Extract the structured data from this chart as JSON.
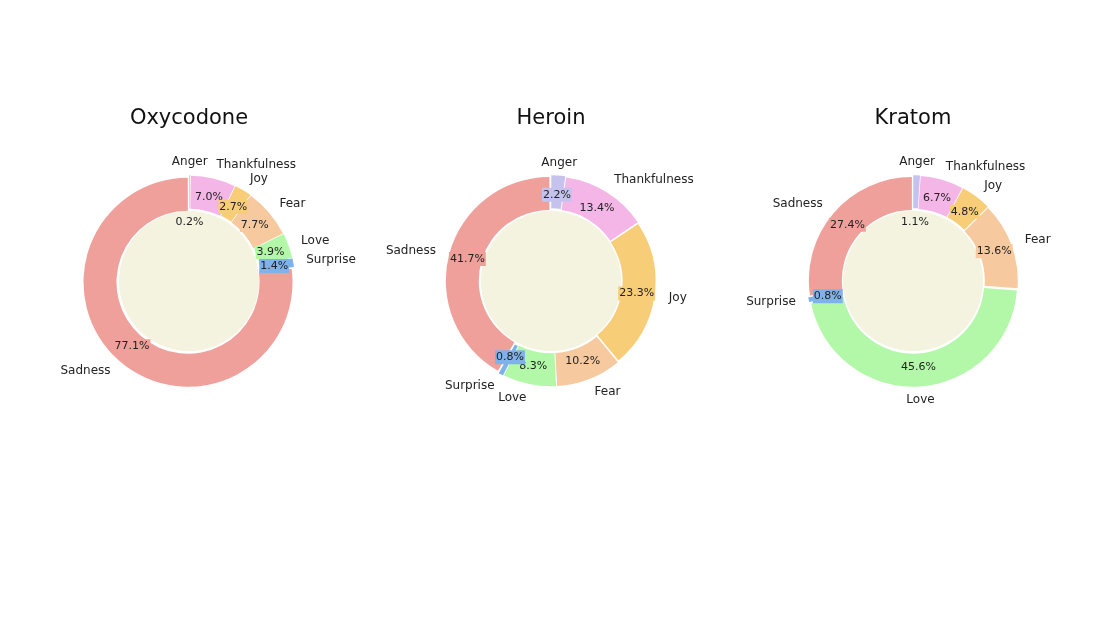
{
  "chart_data": [
    {
      "type": "donut",
      "title": "Oxycodone",
      "categories": [
        "Anger",
        "Thankfulness",
        "Joy",
        "Fear",
        "Love",
        "Surprise",
        "Sadness"
      ],
      "values": [
        0.2,
        7.0,
        2.7,
        7.7,
        3.9,
        1.4,
        77.1
      ],
      "value_labels": [
        "0.2%",
        "7.0%",
        "2.7%",
        "7.7%",
        "3.9%",
        "1.4%",
        "77.1%"
      ],
      "colors": [
        "#c5c3ee",
        "#f4b6e6",
        "#f8cd78",
        "#f6c99e",
        "#b3f8a8",
        "#7fb2ea",
        "#f0a09b"
      ]
    },
    {
      "type": "donut",
      "title": "Heroin",
      "categories": [
        "Anger",
        "Thankfulness",
        "Joy",
        "Fear",
        "Love",
        "Surprise",
        "Sadness"
      ],
      "values": [
        2.2,
        13.4,
        23.3,
        10.2,
        8.3,
        0.8,
        41.7
      ],
      "value_labels": [
        "2.2%",
        "13.4%",
        "23.3%",
        "10.2%",
        "8.3%",
        "0.8%",
        "41.7%"
      ],
      "colors": [
        "#c5c3ee",
        "#f4b6e6",
        "#f8cd78",
        "#f6c99e",
        "#b3f8a8",
        "#7fb2ea",
        "#f0a09b"
      ]
    },
    {
      "type": "donut",
      "title": "Kratom",
      "categories": [
        "Anger",
        "Thankfulness",
        "Joy",
        "Fear",
        "Love",
        "Surprise",
        "Sadness"
      ],
      "values": [
        1.1,
        6.7,
        4.8,
        13.6,
        45.6,
        0.8,
        27.4
      ],
      "value_labels": [
        "1.1%",
        "6.7%",
        "4.8%",
        "13.6%",
        "45.6%",
        "0.8%",
        "27.4%"
      ],
      "colors": [
        "#c5c3ee",
        "#f4b6e6",
        "#f8cd78",
        "#f6c99e",
        "#b3f8a8",
        "#7fb2ea",
        "#f0a09b"
      ]
    }
  ]
}
